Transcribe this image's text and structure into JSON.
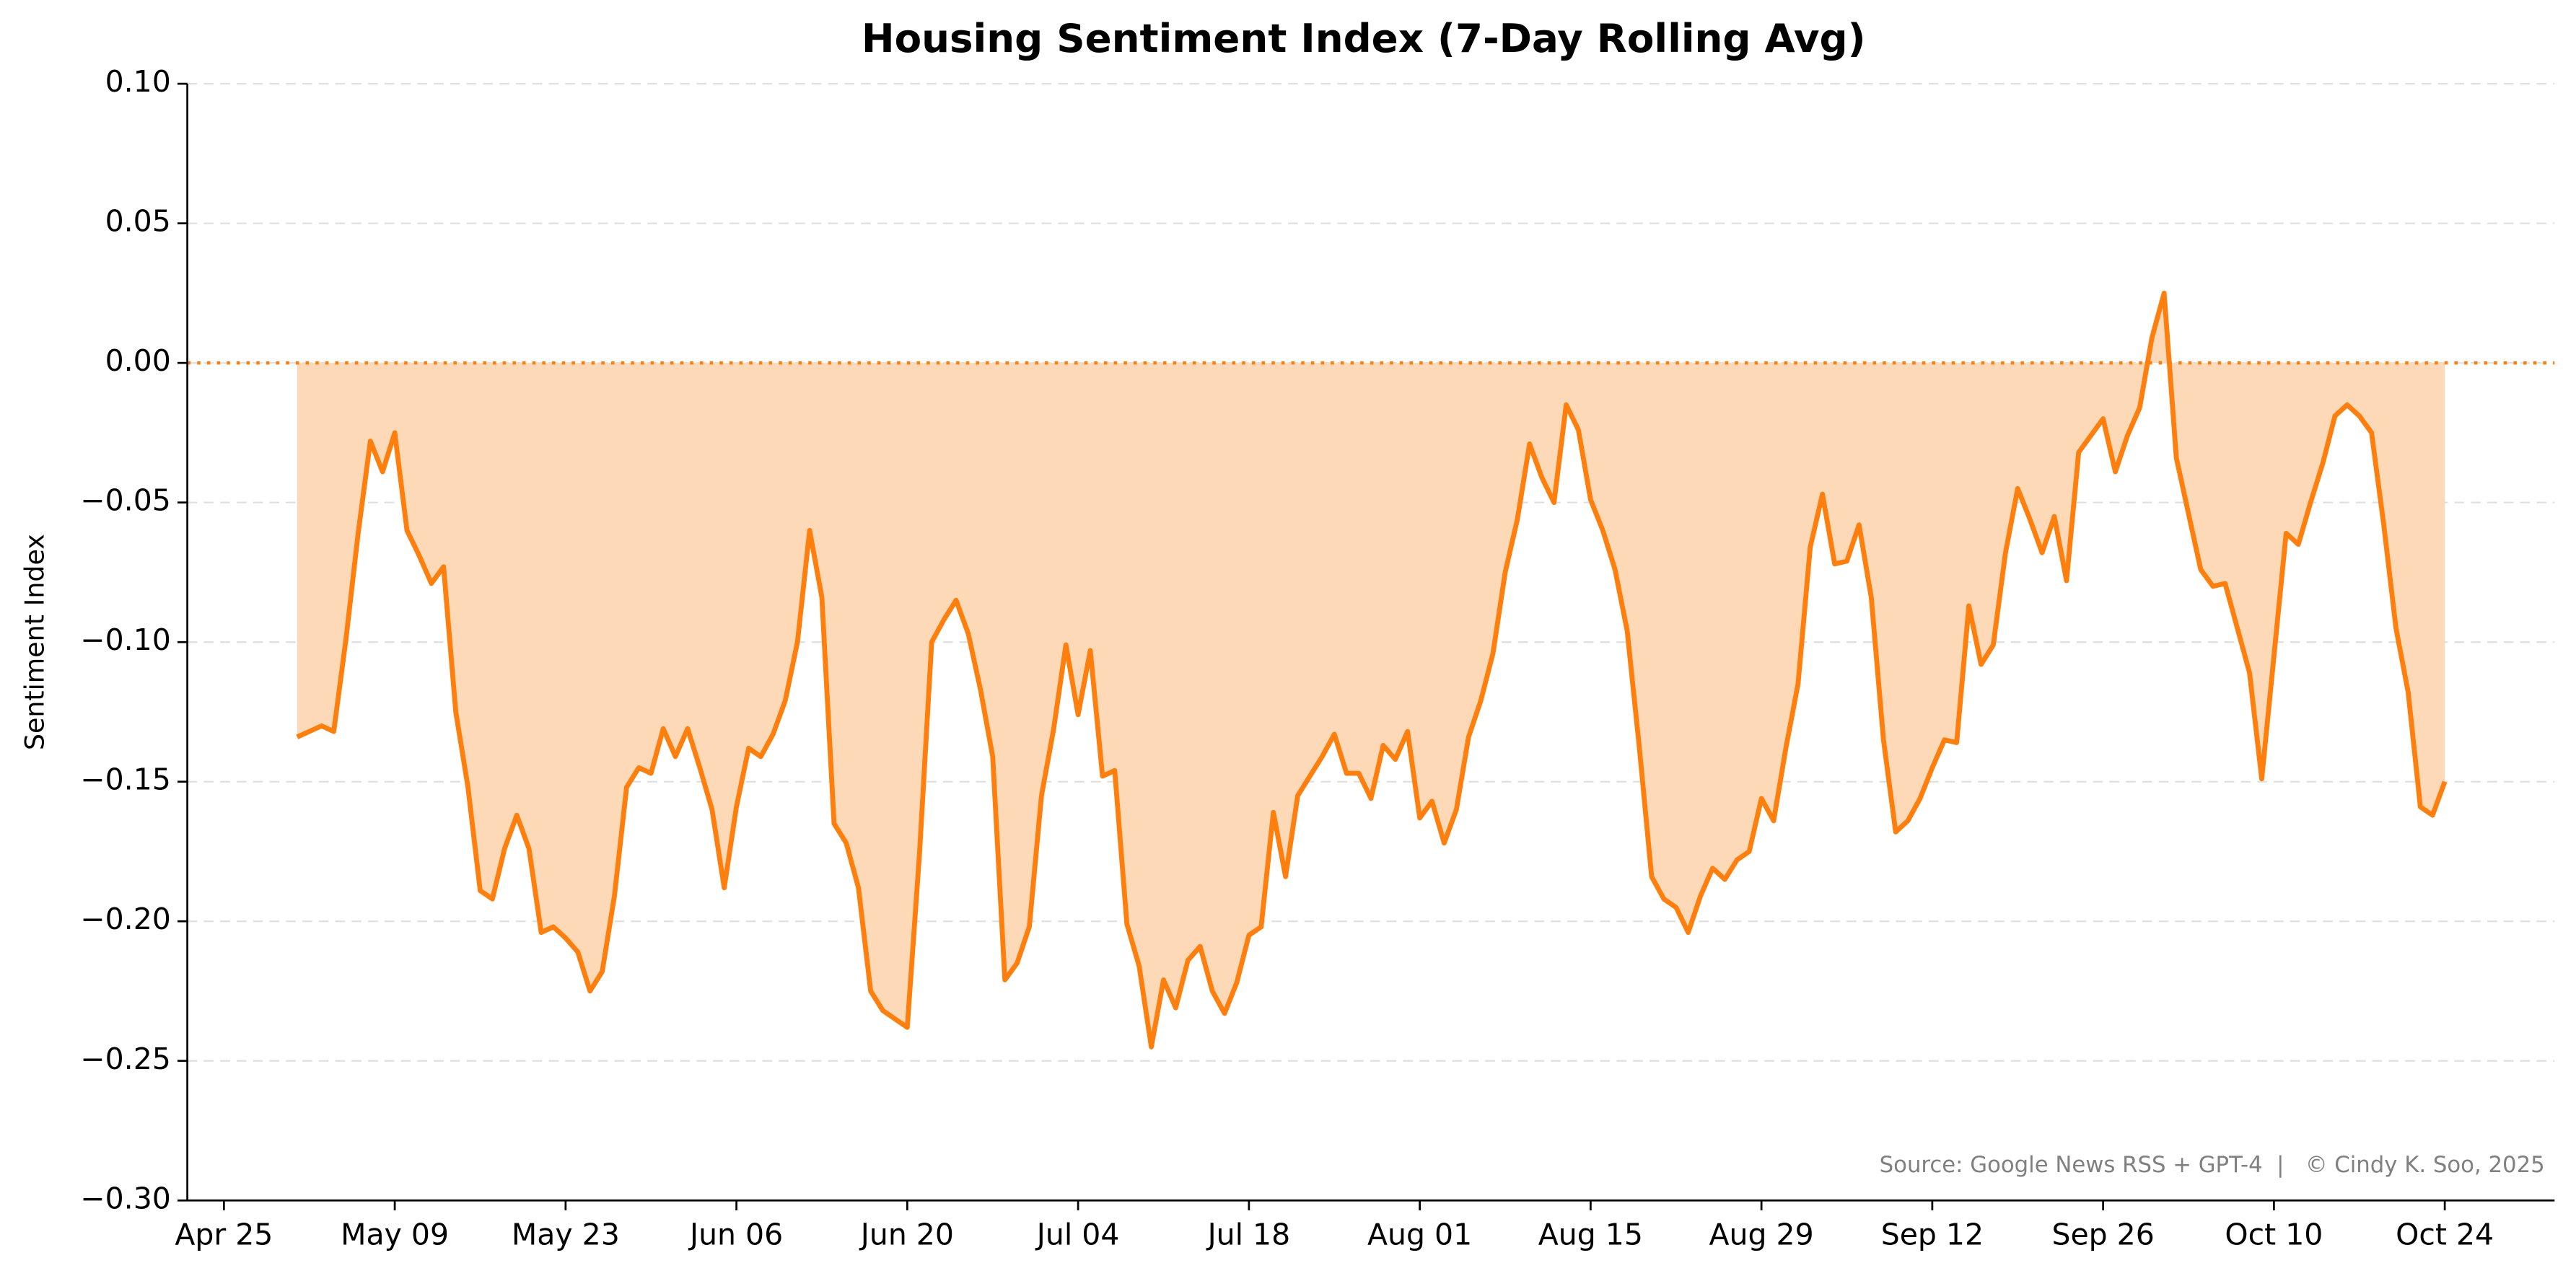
{
  "chart_data": {
    "type": "area",
    "title": "Housing Sentiment Index (7-Day Rolling Avg)",
    "y_label": "Sentiment Index",
    "annotation": "Source: Google News RSS + GPT-4  |   © Cindy K. Soo, 2025",
    "color": "#ff7f0e",
    "fill_color": "#fdd9b8",
    "hline": 0,
    "grid": true,
    "xlim": [
      "Apr 22",
      "Nov 02"
    ],
    "xticks": [
      "Apr 25",
      "May 09",
      "May 23",
      "Jun 06",
      "Jun 20",
      "Jul 04",
      "Jul 18",
      "Aug 01",
      "Aug 15",
      "Aug 29",
      "Sep 12",
      "Sep 26",
      "Oct 10",
      "Oct 24"
    ],
    "ylim": [
      -0.3,
      0.1
    ],
    "yticks": [
      {
        "value": -0.3,
        "label": "−0.30"
      },
      {
        "value": -0.25,
        "label": "−0.25"
      },
      {
        "value": -0.2,
        "label": "−0.20"
      },
      {
        "value": -0.15,
        "label": "−0.15"
      },
      {
        "value": -0.1,
        "label": "−0.10"
      },
      {
        "value": -0.05,
        "label": "−0.05"
      },
      {
        "value": 0,
        "label": "0.00"
      },
      {
        "value": 0.05,
        "label": "0.05"
      },
      {
        "value": 0.1,
        "label": "0.10"
      }
    ],
    "x": [
      "May 01",
      "May 02",
      "May 03",
      "May 04",
      "May 05",
      "May 06",
      "May 07",
      "May 08",
      "May 09",
      "May 10",
      "May 11",
      "May 12",
      "May 13",
      "May 14",
      "May 15",
      "May 16",
      "May 17",
      "May 18",
      "May 19",
      "May 20",
      "May 21",
      "May 22",
      "May 23",
      "May 24",
      "May 25",
      "May 26",
      "May 27",
      "May 28",
      "May 29",
      "May 30",
      "May 31",
      "Jun 01",
      "Jun 02",
      "Jun 03",
      "Jun 04",
      "Jun 05",
      "Jun 06",
      "Jun 07",
      "Jun 08",
      "Jun 09",
      "Jun 10",
      "Jun 11",
      "Jun 12",
      "Jun 13",
      "Jun 14",
      "Jun 15",
      "Jun 16",
      "Jun 17",
      "Jun 18",
      "Jun 19",
      "Jun 20",
      "Jun 21",
      "Jun 22",
      "Jun 23",
      "Jun 24",
      "Jun 25",
      "Jun 26",
      "Jun 27",
      "Jun 28",
      "Jun 29",
      "Jun 30",
      "Jul 01",
      "Jul 02",
      "Jul 03",
      "Jul 04",
      "Jul 05",
      "Jul 06",
      "Jul 07",
      "Jul 08",
      "Jul 09",
      "Jul 10",
      "Jul 11",
      "Jul 12",
      "Jul 13",
      "Jul 14",
      "Jul 15",
      "Jul 16",
      "Jul 17",
      "Jul 18",
      "Jul 19",
      "Jul 20",
      "Jul 21",
      "Jul 22",
      "Jul 23",
      "Jul 24",
      "Jul 25",
      "Jul 26",
      "Jul 27",
      "Jul 28",
      "Jul 29",
      "Jul 30",
      "Jul 31",
      "Aug 01",
      "Aug 02",
      "Aug 03",
      "Aug 04",
      "Aug 05",
      "Aug 06",
      "Aug 07",
      "Aug 08",
      "Aug 09",
      "Aug 10",
      "Aug 11",
      "Aug 12",
      "Aug 13",
      "Aug 14",
      "Aug 15",
      "Aug 16",
      "Aug 17",
      "Aug 18",
      "Aug 19",
      "Aug 20",
      "Aug 21",
      "Aug 22",
      "Aug 23",
      "Aug 24",
      "Aug 25",
      "Aug 26",
      "Aug 27",
      "Aug 28",
      "Aug 29",
      "Aug 30",
      "Aug 31",
      "Sep 01",
      "Sep 02",
      "Sep 03",
      "Sep 04",
      "Sep 05",
      "Sep 06",
      "Sep 07",
      "Sep 08",
      "Sep 09",
      "Sep 10",
      "Sep 11",
      "Sep 12",
      "Sep 13",
      "Sep 14",
      "Sep 15",
      "Sep 16",
      "Sep 17",
      "Sep 18",
      "Sep 19",
      "Sep 20",
      "Sep 21",
      "Sep 22",
      "Sep 23",
      "Sep 24",
      "Sep 25",
      "Sep 26",
      "Sep 27",
      "Sep 28",
      "Sep 29",
      "Sep 30",
      "Oct 01",
      "Oct 02",
      "Oct 03",
      "Oct 04",
      "Oct 05",
      "Oct 06",
      "Oct 07",
      "Oct 08",
      "Oct 09",
      "Oct 10",
      "Oct 11",
      "Oct 12",
      "Oct 13",
      "Oct 14",
      "Oct 15",
      "Oct 16",
      "Oct 17",
      "Oct 18",
      "Oct 19",
      "Oct 20",
      "Oct 21",
      "Oct 22",
      "Oct 23",
      "Oct 24"
    ],
    "values": [
      -0.134,
      -0.132,
      -0.13,
      -0.132,
      -0.099,
      -0.061,
      -0.028,
      -0.039,
      -0.025,
      -0.06,
      -0.069,
      -0.079,
      -0.073,
      -0.125,
      -0.152,
      -0.189,
      -0.192,
      -0.174,
      -0.162,
      -0.174,
      -0.204,
      -0.202,
      -0.206,
      -0.211,
      -0.225,
      -0.218,
      -0.191,
      -0.152,
      -0.145,
      -0.147,
      -0.131,
      -0.141,
      -0.131,
      -0.145,
      -0.16,
      -0.188,
      -0.159,
      -0.138,
      -0.141,
      -0.133,
      -0.121,
      -0.1,
      -0.06,
      -0.084,
      -0.165,
      -0.172,
      -0.188,
      -0.225,
      -0.232,
      -0.235,
      -0.238,
      -0.176,
      -0.1,
      -0.092,
      -0.085,
      -0.097,
      -0.117,
      -0.141,
      -0.221,
      -0.215,
      -0.202,
      -0.155,
      -0.131,
      -0.101,
      -0.126,
      -0.103,
      -0.148,
      -0.146,
      -0.201,
      -0.216,
      -0.245,
      -0.221,
      -0.231,
      -0.214,
      -0.209,
      -0.225,
      -0.233,
      -0.222,
      -0.205,
      -0.202,
      -0.161,
      -0.184,
      -0.155,
      -0.148,
      -0.141,
      -0.133,
      -0.147,
      -0.147,
      -0.156,
      -0.137,
      -0.142,
      -0.132,
      -0.163,
      -0.157,
      -0.172,
      -0.16,
      -0.134,
      -0.121,
      -0.104,
      -0.075,
      -0.056,
      -0.029,
      -0.041,
      -0.05,
      -0.015,
      -0.024,
      -0.049,
      -0.06,
      -0.074,
      -0.096,
      -0.138,
      -0.184,
      -0.192,
      -0.195,
      -0.204,
      -0.191,
      -0.181,
      -0.185,
      -0.178,
      -0.175,
      -0.156,
      -0.164,
      -0.138,
      -0.115,
      -0.066,
      -0.047,
      -0.072,
      -0.071,
      -0.058,
      -0.084,
      -0.135,
      -0.168,
      -0.164,
      -0.156,
      -0.145,
      -0.135,
      -0.136,
      -0.087,
      -0.108,
      -0.101,
      -0.068,
      -0.045,
      -0.056,
      -0.068,
      -0.055,
      -0.078,
      -0.032,
      -0.026,
      -0.02,
      -0.039,
      -0.026,
      -0.016,
      0.009,
      0.025,
      -0.034,
      -0.054,
      -0.074,
      -0.08,
      -0.079,
      -0.095,
      -0.111,
      -0.149,
      -0.105,
      -0.061,
      -0.065,
      -0.05,
      -0.036,
      -0.019,
      -0.015,
      -0.019,
      -0.025,
      -0.058,
      -0.095,
      -0.118,
      -0.159,
      -0.162,
      -0.15
    ]
  }
}
